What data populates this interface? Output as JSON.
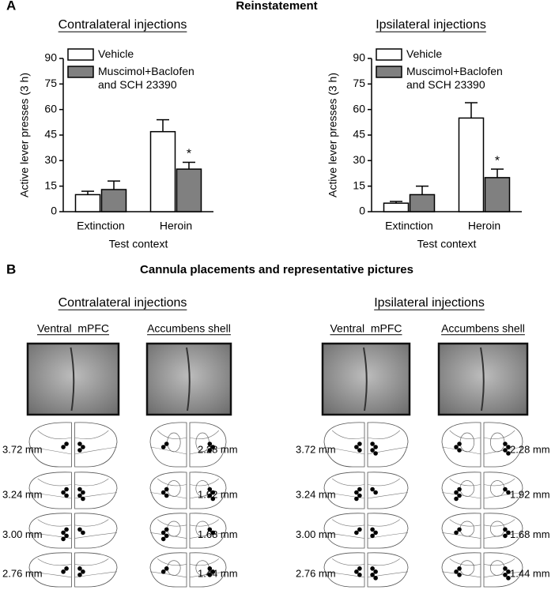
{
  "panel_a": {
    "letter": "A",
    "title": "Reinstatement"
  },
  "chart_data": [
    {
      "type": "bar",
      "title": "Contralateral injections",
      "ylabel": "Active lever presses (3 h)",
      "xlabel": "Test context",
      "categories": [
        "Extinction",
        "Heroin"
      ],
      "ylim": [
        0,
        90
      ],
      "yticks": [
        0,
        15,
        30,
        45,
        60,
        75,
        90
      ],
      "series": [
        {
          "name": "Vehicle",
          "color": "#ffffff",
          "values": [
            10,
            47
          ],
          "errors": [
            2,
            7
          ]
        },
        {
          "name": "Muscimol+Baclofen and SCH 23390",
          "color": "#808080",
          "values": [
            13,
            25
          ],
          "errors": [
            5,
            4
          ]
        }
      ],
      "annotations": [
        {
          "text": "*",
          "series": 1,
          "category": 1
        }
      ]
    },
    {
      "type": "bar",
      "title": "Ipsilateral injections",
      "ylabel": "Active lever presses (3 h)",
      "xlabel": "Test context",
      "categories": [
        "Extinction",
        "Heroin"
      ],
      "ylim": [
        0,
        90
      ],
      "yticks": [
        0,
        15,
        30,
        45,
        60,
        75,
        90
      ],
      "series": [
        {
          "name": "Vehicle",
          "color": "#ffffff",
          "values": [
            5,
            55
          ],
          "errors": [
            1,
            9
          ]
        },
        {
          "name": "Muscimol+Baclofen and SCH 23390",
          "color": "#808080",
          "values": [
            10,
            20
          ],
          "errors": [
            5,
            5
          ]
        }
      ],
      "annotations": [
        {
          "text": "*",
          "series": 1,
          "category": 1
        }
      ]
    }
  ],
  "panel_b": {
    "letter": "B",
    "title": "Cannula placements and representative pictures",
    "groups": [
      {
        "heading": "Contralateral injections",
        "regions": [
          {
            "name": "Ventral  mPFC",
            "levels": [
              "3.72 mm",
              "3.24 mm",
              "3.00 mm",
              "2.76 mm"
            ]
          },
          {
            "name": "Accumbens shell",
            "levels": [
              "2.28 mm",
              "1.92 mm",
              "1.68 mm",
              "1.44 mm"
            ]
          }
        ]
      },
      {
        "heading": "Ipsilateral injections",
        "regions": [
          {
            "name": "Ventral  mPFC",
            "levels": [
              "3.72 mm",
              "3.24 mm",
              "3.00 mm",
              "2.76 mm"
            ]
          },
          {
            "name": "Accumbens shell",
            "levels": [
              "2.28 mm",
              "1.92 mm",
              "1.68 mm",
              "1.44 mm"
            ]
          }
        ]
      }
    ]
  }
}
